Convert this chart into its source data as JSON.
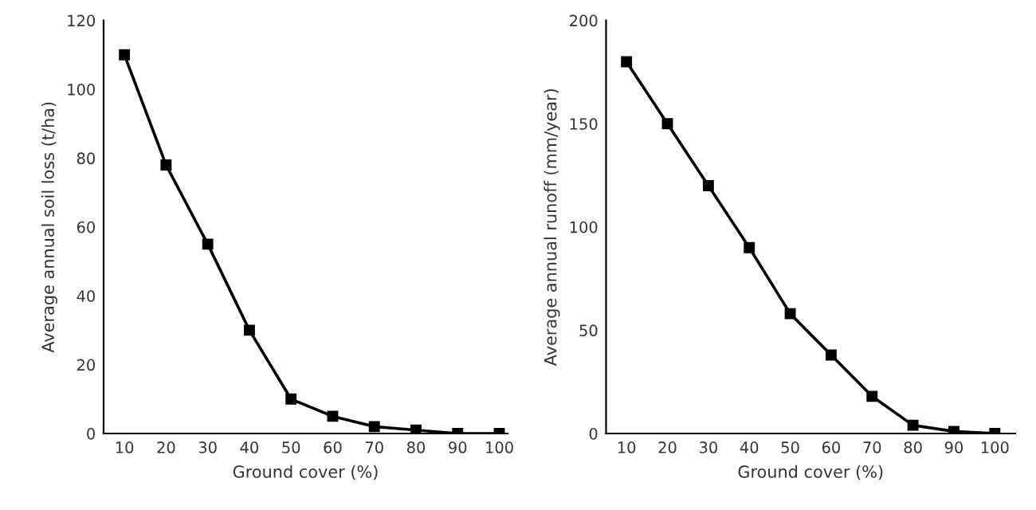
{
  "chart_data": [
    {
      "type": "line",
      "xlabel": "Ground cover (%)",
      "ylabel": "Average annual soil loss (t/ha)",
      "x": [
        10,
        20,
        30,
        40,
        50,
        60,
        70,
        80,
        90,
        100
      ],
      "series": [
        {
          "color": "#000000",
          "values": [
            110,
            78,
            55,
            30,
            10,
            5,
            2,
            1,
            0,
            0
          ]
        }
      ],
      "xlim": [
        5,
        102
      ],
      "xticks": [
        10,
        20,
        30,
        40,
        50,
        60,
        70,
        80,
        90,
        100
      ],
      "ylim": [
        0,
        120
      ],
      "yticks": [
        0,
        20,
        40,
        60,
        80,
        100,
        120
      ],
      "marker": "square",
      "line_style": "solid",
      "grid": false,
      "legend": false
    },
    {
      "type": "line",
      "xlabel": "Ground cover (%)",
      "ylabel": "Average annual runoff (mm/year)",
      "x": [
        10,
        20,
        30,
        40,
        50,
        60,
        70,
        80,
        90,
        100
      ],
      "series": [
        {
          "color": "#000000",
          "values": [
            180,
            150,
            120,
            90,
            58,
            38,
            18,
            4,
            1,
            0
          ]
        }
      ],
      "xlim": [
        5,
        105
      ],
      "xticks": [
        10,
        20,
        30,
        40,
        50,
        60,
        70,
        80,
        90,
        100
      ],
      "ylim": [
        0,
        200
      ],
      "yticks": [
        0,
        50,
        100,
        150,
        200
      ],
      "marker": "square",
      "line_style": "solid",
      "grid": false,
      "legend": false
    }
  ]
}
